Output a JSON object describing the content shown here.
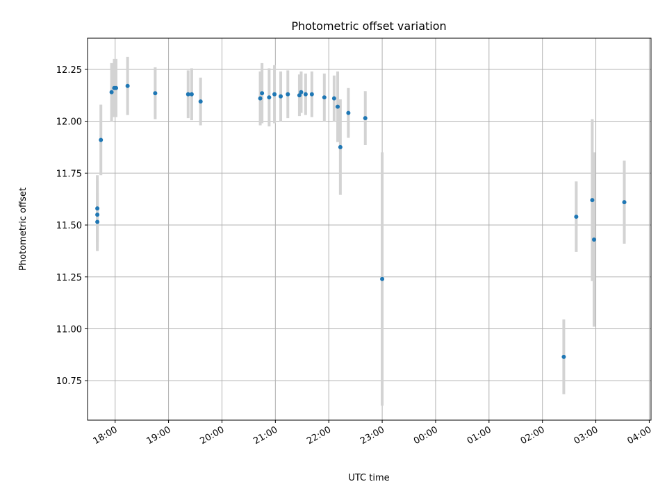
{
  "chart_data": {
    "type": "scatter",
    "title": "Photometric offset variation",
    "xlabel": "UTC time",
    "ylabel": "Photometric offset",
    "x_tick_labels": [
      "18:00",
      "19:00",
      "20:00",
      "21:00",
      "22:00",
      "23:00",
      "00:00",
      "01:00",
      "02:00",
      "03:00",
      "04:00"
    ],
    "y_tick_labels": [
      "10.75",
      "11.00",
      "11.25",
      "11.50",
      "11.75",
      "12.00",
      "12.25"
    ],
    "y_ticks": [
      10.75,
      11.0,
      11.25,
      11.5,
      11.75,
      12.0,
      12.25
    ],
    "xlim": [
      "17:29",
      "04:02"
    ],
    "ylim": [
      10.56,
      12.4
    ],
    "grid": true,
    "colors": {
      "points": "#1f77b4",
      "errorbars": "#d3d3d3",
      "grid": "#b0b0b0"
    },
    "points": [
      {
        "t": "17:40",
        "y": 11.58,
        "err": 0.16
      },
      {
        "t": "17:40",
        "y": 11.55,
        "err": 0.16
      },
      {
        "t": "17:40",
        "y": 11.515,
        "err": 0.14
      },
      {
        "t": "17:44",
        "y": 11.91,
        "err": 0.17
      },
      {
        "t": "17:56",
        "y": 12.14,
        "err": 0.14
      },
      {
        "t": "17:59",
        "y": 12.16,
        "err": 0.14
      },
      {
        "t": "18:01",
        "y": 12.16,
        "err": 0.14
      },
      {
        "t": "18:14",
        "y": 12.17,
        "err": 0.14
      },
      {
        "t": "18:45",
        "y": 12.135,
        "err": 0.125
      },
      {
        "t": "19:22",
        "y": 12.13,
        "err": 0.115
      },
      {
        "t": "19:26",
        "y": 12.13,
        "err": 0.125
      },
      {
        "t": "19:36",
        "y": 12.095,
        "err": 0.115
      },
      {
        "t": "20:43",
        "y": 12.11,
        "err": 0.13
      },
      {
        "t": "20:45",
        "y": 12.135,
        "err": 0.145
      },
      {
        "t": "20:53",
        "y": 12.115,
        "err": 0.14
      },
      {
        "t": "20:59",
        "y": 12.13,
        "err": 0.14
      },
      {
        "t": "21:06",
        "y": 12.12,
        "err": 0.12
      },
      {
        "t": "21:14",
        "y": 12.13,
        "err": 0.115
      },
      {
        "t": "21:27",
        "y": 12.125,
        "err": 0.1
      },
      {
        "t": "21:29",
        "y": 12.14,
        "err": 0.1
      },
      {
        "t": "21:34",
        "y": 12.13,
        "err": 0.1
      },
      {
        "t": "21:41",
        "y": 12.13,
        "err": 0.11
      },
      {
        "t": "21:55",
        "y": 12.115,
        "err": 0.115
      },
      {
        "t": "22:06",
        "y": 12.11,
        "err": 0.11
      },
      {
        "t": "22:10",
        "y": 12.07,
        "err": 0.17
      },
      {
        "t": "22:13",
        "y": 11.875,
        "err": 0.23
      },
      {
        "t": "22:22",
        "y": 12.04,
        "err": 0.12
      },
      {
        "t": "22:41",
        "y": 12.015,
        "err": 0.13
      },
      {
        "t": "23:00",
        "y": 11.24,
        "err": 0.61
      },
      {
        "t": "02:24",
        "y": 10.865,
        "err": 0.18
      },
      {
        "t": "02:38",
        "y": 11.54,
        "err": 0.17
      },
      {
        "t": "02:56",
        "y": 11.62,
        "err": 0.39
      },
      {
        "t": "02:58",
        "y": 11.43,
        "err": 0.42
      },
      {
        "t": "03:32",
        "y": 11.61,
        "err": 0.2
      }
    ]
  }
}
